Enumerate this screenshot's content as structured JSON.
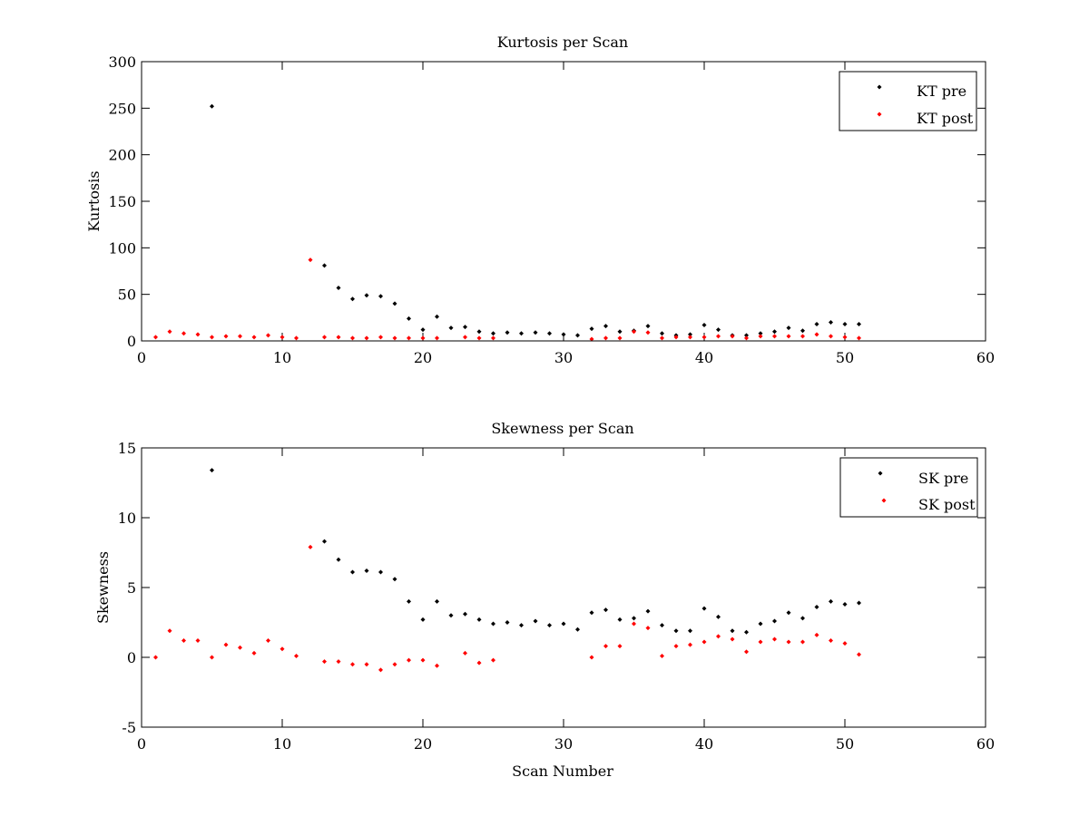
{
  "chart_data": [
    {
      "type": "scatter",
      "title": "Kurtosis per Scan",
      "xlabel": "",
      "ylabel": "Kurtosis",
      "xlim": [
        0,
        60
      ],
      "ylim": [
        0,
        300
      ],
      "xticks": [
        "0",
        "10",
        "20",
        "30",
        "40",
        "50",
        "60"
      ],
      "yticks": [
        "0",
        "50",
        "100",
        "150",
        "200",
        "250",
        "300"
      ],
      "xtick_values": [
        0,
        10,
        20,
        30,
        40,
        50,
        60
      ],
      "ytick_values": [
        0,
        50,
        100,
        150,
        200,
        250,
        300
      ],
      "grid": false,
      "legend_position": "top-right",
      "series": [
        {
          "name": "KT pre",
          "color": "#000000",
          "points": [
            [
              5,
              252
            ],
            [
              13,
              81
            ],
            [
              14,
              57
            ],
            [
              15,
              45
            ],
            [
              16,
              49
            ],
            [
              17,
              48
            ],
            [
              18,
              40
            ],
            [
              19,
              24
            ],
            [
              20,
              12
            ],
            [
              21,
              26
            ],
            [
              22,
              14
            ],
            [
              23,
              15
            ],
            [
              24,
              10
            ],
            [
              25,
              8
            ],
            [
              26,
              9
            ],
            [
              27,
              8
            ],
            [
              28,
              9
            ],
            [
              29,
              8
            ],
            [
              30,
              7
            ],
            [
              31,
              6
            ],
            [
              32,
              13
            ],
            [
              33,
              16
            ],
            [
              34,
              10
            ],
            [
              35,
              11
            ],
            [
              36,
              16
            ],
            [
              37,
              8
            ],
            [
              38,
              6
            ],
            [
              39,
              7
            ],
            [
              40,
              17
            ],
            [
              41,
              12
            ],
            [
              42,
              6
            ],
            [
              43,
              6
            ],
            [
              44,
              8
            ],
            [
              45,
              10
            ],
            [
              46,
              14
            ],
            [
              47,
              11
            ],
            [
              48,
              18
            ],
            [
              49,
              20
            ],
            [
              50,
              18
            ],
            [
              51,
              18
            ]
          ]
        },
        {
          "name": "KT post",
          "color": "#ff0000",
          "points": [
            [
              1,
              4
            ],
            [
              2,
              10
            ],
            [
              3,
              8
            ],
            [
              4,
              7
            ],
            [
              5,
              4
            ],
            [
              6,
              5
            ],
            [
              7,
              5
            ],
            [
              8,
              4
            ],
            [
              9,
              6
            ],
            [
              10,
              4
            ],
            [
              11,
              3
            ],
            [
              12,
              87
            ],
            [
              13,
              4
            ],
            [
              14,
              4
            ],
            [
              15,
              3
            ],
            [
              16,
              3
            ],
            [
              17,
              4
            ],
            [
              18,
              3
            ],
            [
              19,
              3
            ],
            [
              20,
              3
            ],
            [
              21,
              3
            ],
            [
              23,
              4
            ],
            [
              24,
              3
            ],
            [
              25,
              3
            ],
            [
              32,
              2
            ],
            [
              33,
              3
            ],
            [
              34,
              3
            ],
            [
              35,
              10
            ],
            [
              36,
              9
            ],
            [
              37,
              3
            ],
            [
              38,
              4
            ],
            [
              39,
              4
            ],
            [
              40,
              4
            ],
            [
              41,
              5
            ],
            [
              42,
              5
            ],
            [
              43,
              3
            ],
            [
              44,
              5
            ],
            [
              45,
              5
            ],
            [
              46,
              5
            ],
            [
              47,
              5
            ],
            [
              48,
              7
            ],
            [
              49,
              5
            ],
            [
              50,
              4
            ],
            [
              51,
              3
            ]
          ]
        }
      ]
    },
    {
      "type": "scatter",
      "title": "Skewness per Scan",
      "xlabel": "Scan Number",
      "ylabel": "Skewness",
      "xlim": [
        0,
        60
      ],
      "ylim": [
        -5,
        15
      ],
      "xticks": [
        "0",
        "10",
        "20",
        "30",
        "40",
        "50",
        "60"
      ],
      "yticks": [
        "-5",
        "0",
        "5",
        "10",
        "15"
      ],
      "xtick_values": [
        0,
        10,
        20,
        30,
        40,
        50,
        60
      ],
      "ytick_values": [
        -5,
        0,
        5,
        10,
        15
      ],
      "grid": false,
      "legend_position": "top-right",
      "series": [
        {
          "name": "SK pre",
          "color": "#000000",
          "points": [
            [
              5,
              13.4
            ],
            [
              13,
              8.3
            ],
            [
              14,
              7.0
            ],
            [
              15,
              6.1
            ],
            [
              16,
              6.2
            ],
            [
              17,
              6.1
            ],
            [
              18,
              5.6
            ],
            [
              19,
              4.0
            ],
            [
              20,
              2.7
            ],
            [
              21,
              4.0
            ],
            [
              22,
              3.0
            ],
            [
              23,
              3.1
            ],
            [
              24,
              2.7
            ],
            [
              25,
              2.4
            ],
            [
              26,
              2.5
            ],
            [
              27,
              2.3
            ],
            [
              28,
              2.6
            ],
            [
              29,
              2.3
            ],
            [
              30,
              2.4
            ],
            [
              31,
              2.0
            ],
            [
              32,
              3.2
            ],
            [
              33,
              3.4
            ],
            [
              34,
              2.7
            ],
            [
              35,
              2.8
            ],
            [
              36,
              3.3
            ],
            [
              37,
              2.3
            ],
            [
              38,
              1.9
            ],
            [
              39,
              1.9
            ],
            [
              40,
              3.5
            ],
            [
              41,
              2.9
            ],
            [
              42,
              1.9
            ],
            [
              43,
              1.8
            ],
            [
              44,
              2.4
            ],
            [
              45,
              2.6
            ],
            [
              46,
              3.2
            ],
            [
              47,
              2.8
            ],
            [
              48,
              3.6
            ],
            [
              49,
              4.0
            ],
            [
              50,
              3.8
            ],
            [
              51,
              3.9
            ]
          ]
        },
        {
          "name": "SK post",
          "color": "#ff0000",
          "points": [
            [
              1,
              0.0
            ],
            [
              2,
              1.9
            ],
            [
              3,
              1.2
            ],
            [
              4,
              1.2
            ],
            [
              5,
              0.0
            ],
            [
              6,
              0.9
            ],
            [
              7,
              0.7
            ],
            [
              8,
              0.3
            ],
            [
              9,
              1.2
            ],
            [
              10,
              0.6
            ],
            [
              11,
              0.1
            ],
            [
              12,
              7.9
            ],
            [
              13,
              -0.3
            ],
            [
              14,
              -0.3
            ],
            [
              15,
              -0.5
            ],
            [
              16,
              -0.5
            ],
            [
              17,
              -0.9
            ],
            [
              18,
              -0.5
            ],
            [
              19,
              -0.2
            ],
            [
              20,
              -0.2
            ],
            [
              21,
              -0.6
            ],
            [
              23,
              0.3
            ],
            [
              24,
              -0.4
            ],
            [
              25,
              -0.2
            ],
            [
              32,
              0.0
            ],
            [
              33,
              0.8
            ],
            [
              34,
              0.8
            ],
            [
              35,
              2.4
            ],
            [
              36,
              2.1
            ],
            [
              37,
              0.1
            ],
            [
              38,
              0.8
            ],
            [
              39,
              0.9
            ],
            [
              40,
              1.1
            ],
            [
              41,
              1.5
            ],
            [
              42,
              1.3
            ],
            [
              43,
              0.4
            ],
            [
              44,
              1.1
            ],
            [
              45,
              1.3
            ],
            [
              46,
              1.1
            ],
            [
              47,
              1.1
            ],
            [
              48,
              1.6
            ],
            [
              49,
              1.2
            ],
            [
              50,
              1.0
            ],
            [
              51,
              0.2
            ]
          ]
        }
      ]
    }
  ]
}
